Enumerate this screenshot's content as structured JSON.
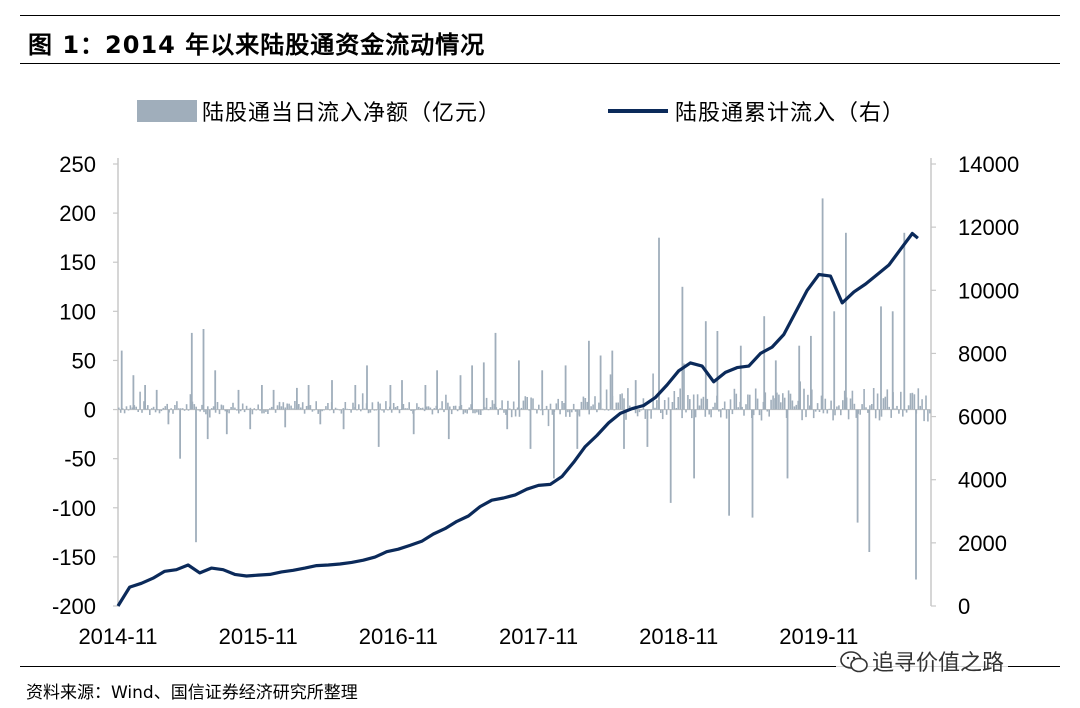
{
  "header": {
    "title": "图 1：2014 年以来陆股通资金流动情况"
  },
  "footer": {
    "source": "资料来源：Wind、国信证券经济研究所整理",
    "watermark": "追寻价值之路",
    "watermark_icon": "wechat-icon"
  },
  "colors": {
    "bars": "#a0aebb",
    "line": "#0b2a5a",
    "axis": "#c8c8c8"
  },
  "chart_data": {
    "type": "bar+line",
    "series": [
      {
        "name": "陆股通当日流入净额（亿元）",
        "type": "bar",
        "axis": "left",
        "spike_points": [
          [
            "2014-11",
            60
          ],
          [
            "2014-12",
            35
          ],
          [
            "2015-01",
            25
          ],
          [
            "2015-02",
            20
          ],
          [
            "2015-03",
            -15
          ],
          [
            "2015-04",
            -50
          ],
          [
            "2015-05",
            78
          ],
          [
            "2015-05",
            -135
          ],
          [
            "2015-06",
            82
          ],
          [
            "2015-06",
            -30
          ],
          [
            "2015-07",
            40
          ],
          [
            "2015-08",
            -25
          ],
          [
            "2015-09",
            20
          ],
          [
            "2015-10",
            -20
          ],
          [
            "2015-11",
            25
          ],
          [
            "2015-12",
            20
          ],
          [
            "2016-01",
            -18
          ],
          [
            "2016-02",
            22
          ],
          [
            "2016-03",
            25
          ],
          [
            "2016-04",
            -15
          ],
          [
            "2016-05",
            30
          ],
          [
            "2016-06",
            -20
          ],
          [
            "2016-07",
            25
          ],
          [
            "2016-08",
            45
          ],
          [
            "2016-09",
            -38
          ],
          [
            "2016-10",
            25
          ],
          [
            "2016-11",
            30
          ],
          [
            "2016-12",
            -25
          ],
          [
            "2017-01",
            25
          ],
          [
            "2017-02",
            40
          ],
          [
            "2017-03",
            -30
          ],
          [
            "2017-04",
            35
          ],
          [
            "2017-05",
            45
          ],
          [
            "2017-06",
            48
          ],
          [
            "2017-07",
            78
          ],
          [
            "2017-08",
            -20
          ],
          [
            "2017-09",
            50
          ],
          [
            "2017-10",
            -40
          ],
          [
            "2017-11",
            40
          ],
          [
            "2017-12",
            -70
          ],
          [
            "2018-01",
            45
          ],
          [
            "2018-02",
            -40
          ],
          [
            "2018-03",
            70
          ],
          [
            "2018-04",
            55
          ],
          [
            "2018-05",
            60
          ],
          [
            "2018-06",
            -40
          ],
          [
            "2018-07",
            30
          ],
          [
            "2018-08",
            -38
          ],
          [
            "2018-09",
            175
          ],
          [
            "2018-10",
            -95
          ],
          [
            "2018-11",
            125
          ],
          [
            "2018-12",
            -70
          ],
          [
            "2019-01",
            90
          ],
          [
            "2019-02",
            80
          ],
          [
            "2019-03",
            -108
          ],
          [
            "2019-04",
            65
          ],
          [
            "2019-05",
            -110
          ],
          [
            "2019-06",
            95
          ],
          [
            "2019-07",
            50
          ],
          [
            "2019-08",
            -70
          ],
          [
            "2019-09",
            65
          ],
          [
            "2019-10",
            75
          ],
          [
            "2019-11",
            215
          ],
          [
            "2019-12",
            100
          ],
          [
            "2020-01",
            180
          ],
          [
            "2020-02",
            -115
          ],
          [
            "2020-03",
            -145
          ],
          [
            "2020-04",
            105
          ],
          [
            "2020-05",
            100
          ],
          [
            "2020-06",
            180
          ],
          [
            "2020-07",
            -173
          ]
        ]
      },
      {
        "name": "陆股通累计流入（右）",
        "type": "line",
        "axis": "right",
        "points": [
          [
            "2014-11",
            0
          ],
          [
            "2014-12",
            600
          ],
          [
            "2015-01",
            720
          ],
          [
            "2015-02",
            880
          ],
          [
            "2015-03",
            1100
          ],
          [
            "2015-04",
            1150
          ],
          [
            "2015-05",
            1300
          ],
          [
            "2015-06",
            1050
          ],
          [
            "2015-07",
            1200
          ],
          [
            "2015-08",
            1150
          ],
          [
            "2015-09",
            1000
          ],
          [
            "2015-10",
            950
          ],
          [
            "2015-11",
            980
          ],
          [
            "2015-12",
            1000
          ],
          [
            "2016-01",
            1080
          ],
          [
            "2016-02",
            1130
          ],
          [
            "2016-03",
            1200
          ],
          [
            "2016-04",
            1280
          ],
          [
            "2016-05",
            1300
          ],
          [
            "2016-06",
            1330
          ],
          [
            "2016-07",
            1380
          ],
          [
            "2016-08",
            1450
          ],
          [
            "2016-09",
            1550
          ],
          [
            "2016-10",
            1720
          ],
          [
            "2016-11",
            1800
          ],
          [
            "2016-12",
            1920
          ],
          [
            "2017-01",
            2050
          ],
          [
            "2017-02",
            2280
          ],
          [
            "2017-03",
            2450
          ],
          [
            "2017-04",
            2680
          ],
          [
            "2017-05",
            2850
          ],
          [
            "2017-06",
            3150
          ],
          [
            "2017-07",
            3350
          ],
          [
            "2017-08",
            3420
          ],
          [
            "2017-09",
            3520
          ],
          [
            "2017-10",
            3700
          ],
          [
            "2017-11",
            3820
          ],
          [
            "2017-12",
            3850
          ],
          [
            "2018-01",
            4100
          ],
          [
            "2018-02",
            4550
          ],
          [
            "2018-03",
            5050
          ],
          [
            "2018-04",
            5400
          ],
          [
            "2018-05",
            5800
          ],
          [
            "2018-06",
            6100
          ],
          [
            "2018-07",
            6250
          ],
          [
            "2018-08",
            6350
          ],
          [
            "2018-09",
            6600
          ],
          [
            "2018-10",
            7000
          ],
          [
            "2018-11",
            7450
          ],
          [
            "2018-12",
            7700
          ],
          [
            "2019-01",
            7600
          ],
          [
            "2019-02",
            7100
          ],
          [
            "2019-03",
            7400
          ],
          [
            "2019-04",
            7550
          ],
          [
            "2019-05",
            7600
          ],
          [
            "2019-06",
            8000
          ],
          [
            "2019-07",
            8200
          ],
          [
            "2019-08",
            8600
          ],
          [
            "2019-09",
            9300
          ],
          [
            "2019-10",
            10000
          ],
          [
            "2019-11",
            10500
          ],
          [
            "2019-12",
            10450
          ],
          [
            "2020-01",
            9600
          ],
          [
            "2020-02",
            9950
          ],
          [
            "2020-03",
            10200
          ],
          [
            "2020-04",
            10500
          ],
          [
            "2020-05",
            10800
          ],
          [
            "2020-06",
            11300
          ],
          [
            "2020-07",
            11800
          ],
          [
            "2020-07",
            11650
          ]
        ]
      }
    ],
    "x_ticks": [
      "2014-11",
      "2015-11",
      "2016-11",
      "2017-11",
      "2018-11",
      "2019-11"
    ],
    "y_left": {
      "ticks": [
        250,
        200,
        150,
        100,
        50,
        0,
        -50,
        -100,
        -150,
        -200
      ],
      "range": [
        -200,
        250
      ]
    },
    "y_right": {
      "ticks": [
        14000,
        12000,
        10000,
        8000,
        6000,
        4000,
        2000,
        0
      ],
      "range": [
        0,
        14000
      ]
    },
    "grid": false,
    "legend_position": "top"
  }
}
